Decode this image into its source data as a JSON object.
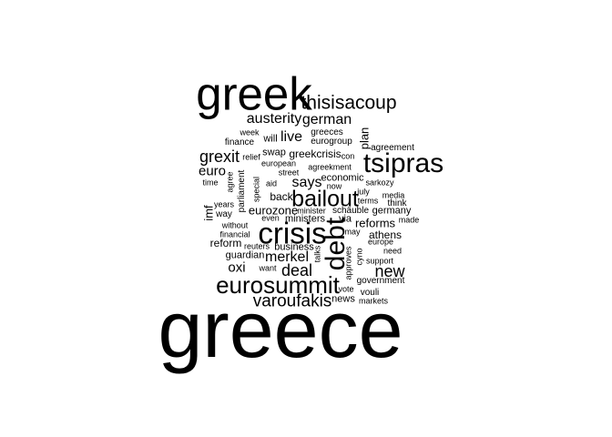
{
  "text_color": "#000000",
  "background": "#ffffff",
  "words": [
    {
      "text": "greece",
      "size": 1.0,
      "vertical": false
    },
    {
      "text": "greek",
      "size": 0.58,
      "vertical": false
    },
    {
      "text": "crisis",
      "size": 0.38,
      "vertical": false
    },
    {
      "text": "tsipras",
      "size": 0.34,
      "vertical": false
    },
    {
      "text": "debt",
      "size": 0.34,
      "vertical": true
    },
    {
      "text": "eurosummit",
      "size": 0.3,
      "vertical": false
    },
    {
      "text": "bailout",
      "size": 0.28,
      "vertical": false
    },
    {
      "text": "thisisacoup",
      "size": 0.24,
      "vertical": false
    },
    {
      "text": "varoufakis",
      "size": 0.22,
      "vertical": false
    },
    {
      "text": "deal",
      "size": 0.2,
      "vertical": false
    },
    {
      "text": "new",
      "size": 0.2,
      "vertical": false
    },
    {
      "text": "grexit",
      "size": 0.2,
      "vertical": false
    },
    {
      "text": "german",
      "size": 0.18,
      "vertical": false
    },
    {
      "text": "austerity",
      "size": 0.18,
      "vertical": false
    },
    {
      "text": "merkel",
      "size": 0.18,
      "vertical": false
    },
    {
      "text": "says",
      "size": 0.18,
      "vertical": false
    },
    {
      "text": "live",
      "size": 0.18,
      "vertical": false
    },
    {
      "text": "euro",
      "size": 0.17,
      "vertical": false
    },
    {
      "text": "oxi",
      "size": 0.17,
      "vertical": false
    },
    {
      "text": "plan",
      "size": 0.15,
      "vertical": true
    },
    {
      "text": "eurozone",
      "size": 0.15,
      "vertical": false
    },
    {
      "text": "reforms",
      "size": 0.15,
      "vertical": false
    },
    {
      "text": "greekcrisis",
      "size": 0.14,
      "vertical": false
    },
    {
      "text": "athens",
      "size": 0.14,
      "vertical": false
    },
    {
      "text": "back",
      "size": 0.14,
      "vertical": false
    },
    {
      "text": "reform",
      "size": 0.14,
      "vertical": false
    },
    {
      "text": "imf",
      "size": 0.15,
      "vertical": true
    },
    {
      "text": "will",
      "size": 0.13,
      "vertical": false
    },
    {
      "text": "swap",
      "size": 0.13,
      "vertical": false
    },
    {
      "text": "economic",
      "size": 0.12,
      "vertical": false
    },
    {
      "text": "germany",
      "size": 0.12,
      "vertical": false
    },
    {
      "text": "via",
      "size": 0.12,
      "vertical": false
    },
    {
      "text": "business",
      "size": 0.12,
      "vertical": false
    },
    {
      "text": "guardian",
      "size": 0.12,
      "vertical": false
    },
    {
      "text": "government",
      "size": 0.11,
      "vertical": false
    },
    {
      "text": "ministers",
      "size": 0.12,
      "vertical": false
    },
    {
      "text": "news",
      "size": 0.12,
      "vertical": false
    },
    {
      "text": "vouli",
      "size": 0.11,
      "vertical": false
    },
    {
      "text": "finance",
      "size": 0.11,
      "vertical": false
    },
    {
      "text": "greeces",
      "size": 0.11,
      "vertical": false
    },
    {
      "text": "eurogroup",
      "size": 0.11,
      "vertical": false
    },
    {
      "text": "agreement",
      "size": 0.11,
      "vertical": false
    },
    {
      "text": "agreekment",
      "size": 0.1,
      "vertical": false
    },
    {
      "text": "european",
      "size": 0.1,
      "vertical": false
    },
    {
      "text": "week",
      "size": 0.1,
      "vertical": false
    },
    {
      "text": "relief",
      "size": 0.1,
      "vertical": false
    },
    {
      "text": "con",
      "size": 0.1,
      "vertical": false
    },
    {
      "text": "street",
      "size": 0.1,
      "vertical": false
    },
    {
      "text": "aid",
      "size": 0.1,
      "vertical": false
    },
    {
      "text": "now",
      "size": 0.1,
      "vertical": false
    },
    {
      "text": "sarkozy",
      "size": 0.1,
      "vertical": false
    },
    {
      "text": "july",
      "size": 0.1,
      "vertical": false
    },
    {
      "text": "media",
      "size": 0.1,
      "vertical": false
    },
    {
      "text": "terms",
      "size": 0.1,
      "vertical": false
    },
    {
      "text": "think",
      "size": 0.11,
      "vertical": false
    },
    {
      "text": "time",
      "size": 0.1,
      "vertical": false
    },
    {
      "text": "agree",
      "size": 0.1,
      "vertical": true
    },
    {
      "text": "parliament",
      "size": 0.11,
      "vertical": true
    },
    {
      "text": "special",
      "size": 0.1,
      "vertical": true
    },
    {
      "text": "years",
      "size": 0.1,
      "vertical": false
    },
    {
      "text": "way",
      "size": 0.11,
      "vertical": false
    },
    {
      "text": "even",
      "size": 0.1,
      "vertical": false
    },
    {
      "text": "minister",
      "size": 0.1,
      "vertical": false
    },
    {
      "text": "schäuble",
      "size": 0.11,
      "vertical": false
    },
    {
      "text": "made",
      "size": 0.1,
      "vertical": false
    },
    {
      "text": "without",
      "size": 0.1,
      "vertical": false
    },
    {
      "text": "financial",
      "size": 0.1,
      "vertical": false
    },
    {
      "text": "may",
      "size": 0.1,
      "vertical": false
    },
    {
      "text": "europe",
      "size": 0.1,
      "vertical": false
    },
    {
      "text": "reuters",
      "size": 0.1,
      "vertical": false
    },
    {
      "text": "talks",
      "size": 0.1,
      "vertical": true
    },
    {
      "text": "approves",
      "size": 0.1,
      "vertical": true
    },
    {
      "text": "cyno",
      "size": 0.09,
      "vertical": true
    },
    {
      "text": "need",
      "size": 0.1,
      "vertical": false
    },
    {
      "text": "support",
      "size": 0.1,
      "vertical": false
    },
    {
      "text": "want",
      "size": 0.1,
      "vertical": false
    },
    {
      "text": "vote",
      "size": 0.1,
      "vertical": false
    },
    {
      "text": "markets",
      "size": 0.1,
      "vertical": false
    }
  ]
}
